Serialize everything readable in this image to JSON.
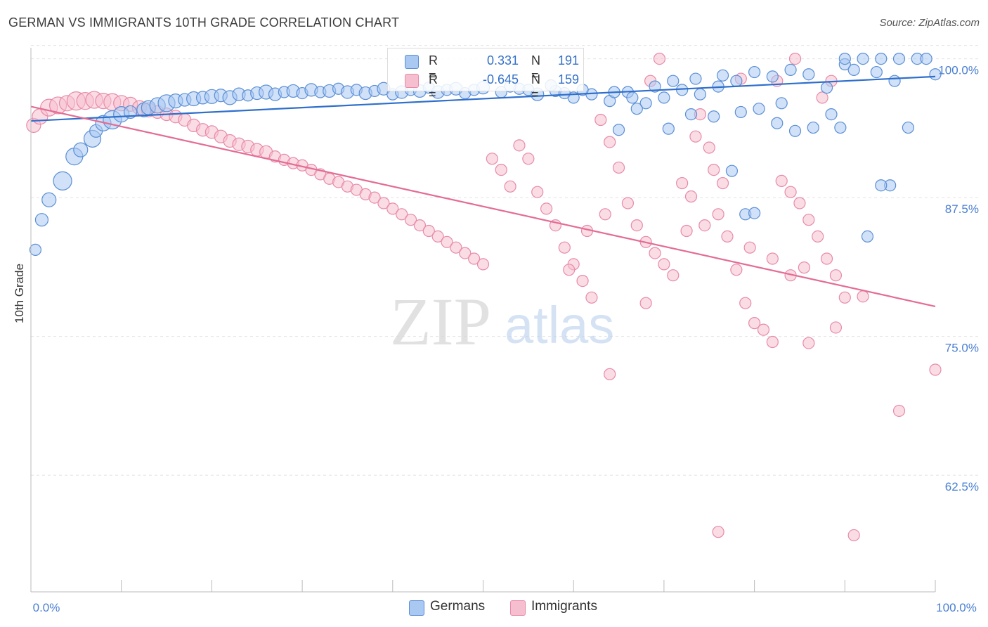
{
  "header": {
    "title": "GERMAN VS IMMIGRANTS 10TH GRADE CORRELATION CHART",
    "source": "Source: ZipAtlas.com"
  },
  "watermark": {
    "zip": "ZIP",
    "atlas": "atlas"
  },
  "colors": {
    "germans_fill": "#a9c8f2",
    "germans_stroke": "#5b8fd6",
    "germans_line": "#2f6fcc",
    "immigrants_fill": "#f6bfd0",
    "immigrants_stroke": "#e88aa8",
    "immigrants_line": "#e46c94",
    "tick_label": "#4a7fd1",
    "grid": "#e2e2e2"
  },
  "stats_legend": {
    "germans": {
      "r_label": "R =",
      "r_value": "0.331",
      "n_label": "N =",
      "n_value": "191"
    },
    "immigrants": {
      "r_label": "R =",
      "r_value": "-0.645",
      "n_label": "N =",
      "n_value": "159"
    }
  },
  "chart_data": {
    "type": "scatter",
    "title": "GERMAN VS IMMIGRANTS 10TH GRADE CORRELATION CHART",
    "xlabel": "",
    "ylabel": "10th Grade",
    "xlim": [
      0,
      100
    ],
    "ylim": [
      52,
      102
    ],
    "x_tick_labels": [
      "0.0%",
      "100.0%"
    ],
    "y_ticks": [
      62.5,
      75.0,
      87.5,
      100.0
    ],
    "y_tick_labels": [
      "62.5%",
      "75.0%",
      "87.5%",
      "100.0%"
    ],
    "grid": true,
    "legend": "bottom-center",
    "series": [
      {
        "name": "Germans",
        "trend": {
          "x": [
            0,
            100
          ],
          "y": [
            94.4,
            98.4
          ]
        },
        "points": [
          [
            0.5,
            82.8,
            8
          ],
          [
            1.2,
            85.5,
            9
          ],
          [
            2.0,
            87.3,
            10
          ],
          [
            3.5,
            89.0,
            13
          ],
          [
            4.8,
            91.2,
            12
          ],
          [
            5.5,
            91.8,
            10
          ],
          [
            6.8,
            92.8,
            12
          ],
          [
            7.2,
            93.5,
            9
          ],
          [
            8.0,
            94.2,
            11
          ],
          [
            9.0,
            94.5,
            13
          ],
          [
            10.0,
            95.0,
            11
          ],
          [
            11.0,
            95.2,
            9
          ],
          [
            12.5,
            95.4,
            10
          ],
          [
            13.0,
            95.6,
            10
          ],
          [
            14.0,
            95.8,
            11
          ],
          [
            15.0,
            96.0,
            12
          ],
          [
            16.0,
            96.2,
            10
          ],
          [
            17.0,
            96.3,
            9
          ],
          [
            18.0,
            96.4,
            10
          ],
          [
            19.0,
            96.5,
            9
          ],
          [
            20.0,
            96.6,
            10
          ],
          [
            21.0,
            96.7,
            9
          ],
          [
            22.0,
            96.5,
            10
          ],
          [
            23.0,
            96.8,
            9
          ],
          [
            24.0,
            96.7,
            8
          ],
          [
            25.0,
            96.9,
            9
          ],
          [
            26.0,
            97.0,
            10
          ],
          [
            27.0,
            96.8,
            9
          ],
          [
            28.0,
            97.0,
            8
          ],
          [
            29.0,
            97.1,
            9
          ],
          [
            30.0,
            96.9,
            8
          ],
          [
            31.0,
            97.2,
            9
          ],
          [
            32.0,
            97.0,
            8
          ],
          [
            33.0,
            97.1,
            9
          ],
          [
            34.0,
            97.3,
            8
          ],
          [
            35.0,
            97.0,
            9
          ],
          [
            36.0,
            97.2,
            8
          ],
          [
            37.0,
            96.9,
            9
          ],
          [
            38.0,
            97.1,
            8
          ],
          [
            39.0,
            97.3,
            9
          ],
          [
            40.0,
            96.8,
            8
          ],
          [
            41.0,
            97.0,
            9
          ],
          [
            42.0,
            97.2,
            8
          ],
          [
            43.0,
            97.1,
            9
          ],
          [
            44.0,
            97.4,
            8
          ],
          [
            45.0,
            97.0,
            9
          ],
          [
            46.0,
            97.2,
            8
          ],
          [
            47.0,
            97.3,
            9
          ],
          [
            48.0,
            96.9,
            8
          ],
          [
            49.0,
            97.2,
            8
          ],
          [
            50.0,
            97.4,
            9
          ],
          [
            52.0,
            97.0,
            8
          ],
          [
            54.0,
            97.3,
            8
          ],
          [
            56.0,
            96.8,
            9
          ],
          [
            58.0,
            97.1,
            8
          ],
          [
            60.0,
            96.5,
            8
          ],
          [
            62.0,
            96.8,
            8
          ],
          [
            64.0,
            96.2,
            8
          ],
          [
            66.0,
            97.0,
            8
          ],
          [
            68.0,
            96.0,
            8
          ],
          [
            70.0,
            96.5,
            8
          ],
          [
            72.0,
            97.2,
            8
          ],
          [
            74.0,
            96.8,
            8
          ],
          [
            76.0,
            97.5,
            8
          ],
          [
            78.0,
            98.0,
            8
          ],
          [
            80.0,
            98.8,
            8
          ],
          [
            82.0,
            98.4,
            8
          ],
          [
            84.0,
            99.0,
            8
          ],
          [
            86.0,
            98.6,
            8
          ],
          [
            88.0,
            97.4,
            8
          ],
          [
            90.0,
            99.5,
            8
          ],
          [
            92.0,
            100.0,
            8
          ],
          [
            94.0,
            100.0,
            8
          ],
          [
            96.0,
            100.0,
            8
          ],
          [
            98.0,
            100.0,
            8
          ],
          [
            99.0,
            100.0,
            8
          ],
          [
            100.0,
            98.6,
            8
          ],
          [
            66.5,
            96.5,
            8
          ],
          [
            67.0,
            95.5,
            8
          ],
          [
            65.0,
            93.6,
            8
          ],
          [
            70.5,
            93.7,
            8
          ],
          [
            73.0,
            95.0,
            8
          ],
          [
            75.5,
            94.8,
            8
          ],
          [
            78.5,
            95.2,
            8
          ],
          [
            80.5,
            95.5,
            8
          ],
          [
            82.5,
            94.2,
            8
          ],
          [
            83.0,
            96.0,
            8
          ],
          [
            84.5,
            93.5,
            8
          ],
          [
            86.5,
            93.8,
            8
          ],
          [
            88.5,
            95.0,
            8
          ],
          [
            89.5,
            93.8,
            8
          ],
          [
            77.5,
            89.9,
            8
          ],
          [
            79.0,
            86.0,
            8
          ],
          [
            80.0,
            86.1,
            8
          ],
          [
            92.5,
            84.0,
            8
          ],
          [
            95.0,
            88.6,
            8
          ],
          [
            94.0,
            88.6,
            8
          ],
          [
            97.0,
            93.8,
            8
          ],
          [
            90.0,
            100.0,
            8
          ],
          [
            91.0,
            99.0,
            8
          ],
          [
            93.5,
            98.8,
            8
          ],
          [
            95.5,
            98.0,
            8
          ],
          [
            76.5,
            98.5,
            8
          ],
          [
            73.5,
            98.2,
            8
          ],
          [
            71.0,
            98.0,
            8
          ],
          [
            69.0,
            97.5,
            8
          ],
          [
            64.5,
            97.0,
            8
          ],
          [
            61.0,
            97.2,
            8
          ],
          [
            59.0,
            96.9,
            8
          ],
          [
            57.5,
            97.6,
            8
          ],
          [
            55.0,
            97.2,
            8
          ],
          [
            53.0,
            97.5,
            8
          ]
        ]
      },
      {
        "name": "Immigrants",
        "trend": {
          "x": [
            0,
            100
          ],
          "y": [
            95.7,
            77.7
          ]
        },
        "points": [
          [
            0.3,
            94.0,
            10
          ],
          [
            1.0,
            94.8,
            11
          ],
          [
            2.0,
            95.6,
            12
          ],
          [
            3.0,
            95.8,
            12
          ],
          [
            4.0,
            96.0,
            11
          ],
          [
            5.0,
            96.2,
            13
          ],
          [
            6.0,
            96.2,
            12
          ],
          [
            7.0,
            96.3,
            12
          ],
          [
            8.0,
            96.2,
            11
          ],
          [
            9.0,
            96.1,
            12
          ],
          [
            10.0,
            96.0,
            11
          ],
          [
            11.0,
            95.9,
            10
          ],
          [
            12.0,
            95.6,
            10
          ],
          [
            13.0,
            95.4,
            10
          ],
          [
            14.0,
            95.2,
            9
          ],
          [
            15.0,
            95.0,
            9
          ],
          [
            16.0,
            94.8,
            9
          ],
          [
            17.0,
            94.5,
            9
          ],
          [
            18.0,
            94.0,
            9
          ],
          [
            19.0,
            93.6,
            9
          ],
          [
            20.0,
            93.4,
            9
          ],
          [
            21.0,
            93.0,
            9
          ],
          [
            22.0,
            92.6,
            9
          ],
          [
            23.0,
            92.3,
            9
          ],
          [
            24.0,
            92.1,
            9
          ],
          [
            25.0,
            91.8,
            9
          ],
          [
            26.0,
            91.6,
            9
          ],
          [
            27.0,
            91.2,
            8
          ],
          [
            28.0,
            90.9,
            8
          ],
          [
            29.0,
            90.6,
            8
          ],
          [
            30.0,
            90.4,
            8
          ],
          [
            31.0,
            90.0,
            8
          ],
          [
            32.0,
            89.6,
            8
          ],
          [
            33.0,
            89.2,
            8
          ],
          [
            34.0,
            88.9,
            8
          ],
          [
            35.0,
            88.5,
            8
          ],
          [
            36.0,
            88.2,
            8
          ],
          [
            37.0,
            87.8,
            8
          ],
          [
            38.0,
            87.5,
            8
          ],
          [
            39.0,
            87.0,
            8
          ],
          [
            40.0,
            86.5,
            8
          ],
          [
            41.0,
            86.0,
            8
          ],
          [
            42.0,
            85.5,
            8
          ],
          [
            43.0,
            85.0,
            8
          ],
          [
            44.0,
            84.5,
            8
          ],
          [
            45.0,
            84.0,
            8
          ],
          [
            46.0,
            83.5,
            8
          ],
          [
            47.0,
            83.0,
            8
          ],
          [
            48.0,
            82.5,
            8
          ],
          [
            49.0,
            82.0,
            8
          ],
          [
            50.0,
            81.5,
            8
          ],
          [
            51.0,
            91.0,
            8
          ],
          [
            52.0,
            90.0,
            8
          ],
          [
            53.0,
            88.5,
            8
          ],
          [
            54.0,
            92.2,
            8
          ],
          [
            55.0,
            91.0,
            8
          ],
          [
            56.0,
            88.0,
            8
          ],
          [
            57.0,
            86.5,
            8
          ],
          [
            58.0,
            85.0,
            8
          ],
          [
            59.0,
            83.0,
            8
          ],
          [
            60.0,
            81.5,
            8
          ],
          [
            61.0,
            80.0,
            8
          ],
          [
            62.0,
            78.5,
            8
          ],
          [
            63.0,
            94.5,
            8
          ],
          [
            64.0,
            92.5,
            8
          ],
          [
            65.0,
            90.2,
            8
          ],
          [
            66.0,
            87.0,
            8
          ],
          [
            67.0,
            85.0,
            8
          ],
          [
            68.0,
            83.5,
            8
          ],
          [
            69.0,
            82.5,
            8
          ],
          [
            70.0,
            81.5,
            8
          ],
          [
            71.0,
            80.5,
            8
          ],
          [
            72.0,
            88.8,
            8
          ],
          [
            73.0,
            87.6,
            8
          ],
          [
            74.0,
            95.0,
            8
          ],
          [
            75.0,
            92.0,
            8
          ],
          [
            76.0,
            86.0,
            8
          ],
          [
            77.0,
            84.0,
            8
          ],
          [
            78.0,
            81.0,
            8
          ],
          [
            79.0,
            78.0,
            8
          ],
          [
            80.0,
            76.2,
            8
          ],
          [
            81.0,
            75.6,
            8
          ],
          [
            82.0,
            74.5,
            8
          ],
          [
            83.0,
            89.0,
            8
          ],
          [
            84.0,
            88.0,
            8
          ],
          [
            85.0,
            87.0,
            8
          ],
          [
            86.0,
            85.5,
            8
          ],
          [
            87.0,
            84.0,
            8
          ],
          [
            88.0,
            82.0,
            8
          ],
          [
            89.0,
            80.5,
            8
          ],
          [
            90.0,
            78.5,
            8
          ],
          [
            68.5,
            98.0,
            8
          ],
          [
            69.5,
            100.0,
            8
          ],
          [
            78.5,
            98.2,
            8
          ],
          [
            82.5,
            98.0,
            8
          ],
          [
            84.5,
            100.0,
            8
          ],
          [
            87.5,
            96.5,
            8
          ],
          [
            88.5,
            98.0,
            8
          ],
          [
            73.5,
            93.0,
            8
          ],
          [
            75.5,
            90.0,
            8
          ],
          [
            76.5,
            88.8,
            8
          ],
          [
            64.0,
            71.6,
            8
          ],
          [
            68.0,
            78.0,
            8
          ],
          [
            86.0,
            74.4,
            8
          ],
          [
            89.0,
            75.8,
            8
          ],
          [
            76.0,
            57.4,
            8
          ],
          [
            91.0,
            57.1,
            8
          ],
          [
            96.0,
            68.3,
            8
          ],
          [
            100.0,
            72.0,
            8
          ],
          [
            92.0,
            78.6,
            8
          ],
          [
            82.0,
            82.0,
            8
          ],
          [
            79.5,
            83.0,
            8
          ],
          [
            84.0,
            80.5,
            8
          ],
          [
            85.5,
            81.2,
            8
          ],
          [
            72.5,
            84.5,
            8
          ],
          [
            74.5,
            85.0,
            8
          ],
          [
            61.5,
            84.5,
            8
          ],
          [
            63.5,
            86.0,
            8
          ],
          [
            59.5,
            81.0,
            8
          ]
        ]
      }
    ]
  },
  "bottom_legend": {
    "germans": "Germans",
    "immigrants": "Immigrants"
  }
}
